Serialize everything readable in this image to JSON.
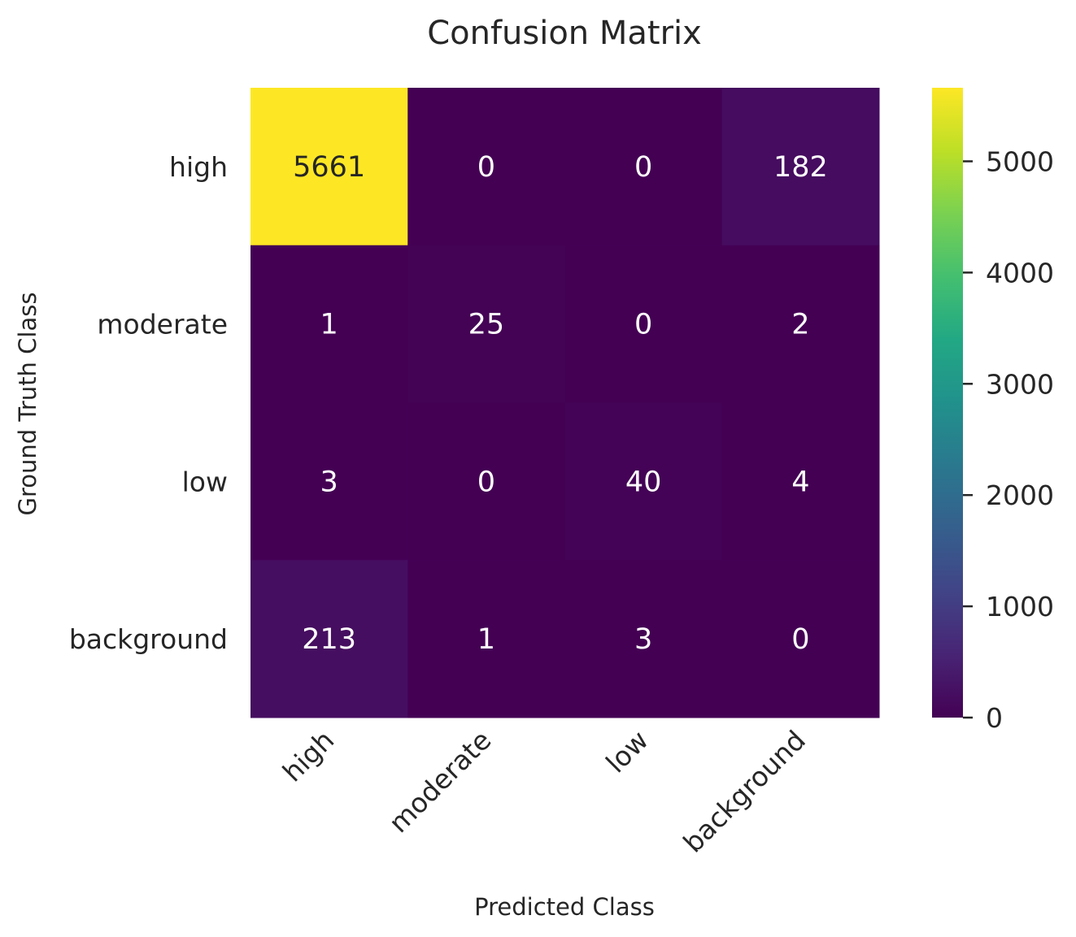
{
  "chart_data": {
    "type": "heatmap",
    "title": "Confusion Matrix",
    "xlabel": "Predicted Class",
    "ylabel": "Ground Truth Class",
    "x_categories": [
      "high",
      "moderate",
      "low",
      "background"
    ],
    "y_categories": [
      "high",
      "moderate",
      "low",
      "background"
    ],
    "values": [
      [
        5661,
        0,
        0,
        182
      ],
      [
        1,
        25,
        0,
        2
      ],
      [
        3,
        0,
        40,
        4
      ],
      [
        213,
        1,
        3,
        0
      ]
    ],
    "colormap": "viridis",
    "colorbar": {
      "range": [
        0,
        5661
      ],
      "ticks": [
        0,
        1000,
        2000,
        3000,
        4000,
        5000
      ],
      "tick_labels": [
        "0",
        "1000",
        "2000",
        "3000",
        "4000",
        "5000"
      ]
    },
    "grid": false
  }
}
